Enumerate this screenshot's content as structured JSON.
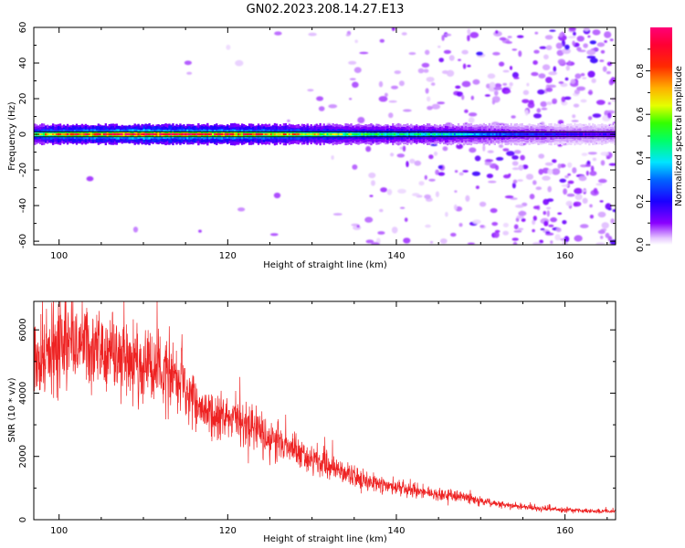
{
  "figure_title": "GN02.2023.208.14.27.E13",
  "colors": {
    "snr_line": "#ee2222",
    "band_core": "#ff1a3a",
    "background": "#ffffff"
  },
  "chart_data": [
    {
      "type": "heatmap",
      "name": "spectrogram",
      "xlabel": "Height of straight line (km)",
      "ylabel": "Frequency (Hz)",
      "xlim": [
        97,
        166
      ],
      "ylim": [
        -62,
        60
      ],
      "x_ticks": [
        100,
        120,
        140,
        160
      ],
      "y_ticks": [
        -60,
        -40,
        -20,
        0,
        20,
        40,
        60
      ],
      "colormap": "rainbow (violet to magenta)",
      "band": {
        "center_hz": 0,
        "halfwidth_hz": 2.5,
        "amplitude_profile": [
          {
            "x": 97,
            "amp": 0.6
          },
          {
            "x": 100,
            "amp": 0.85
          },
          {
            "x": 110,
            "amp": 1.0
          },
          {
            "x": 120,
            "amp": 0.92
          },
          {
            "x": 128,
            "amp": 0.75
          },
          {
            "x": 135,
            "amp": 0.55
          },
          {
            "x": 145,
            "amp": 0.45
          },
          {
            "x": 152,
            "amp": 0.3
          },
          {
            "x": 160,
            "amp": 0.2
          },
          {
            "x": 166,
            "amp": 0.18
          }
        ]
      },
      "noise_density_profile": [
        {
          "x": 97,
          "density": 0.0
        },
        {
          "x": 128,
          "density": 0.02
        },
        {
          "x": 135,
          "density": 0.15
        },
        {
          "x": 145,
          "density": 0.4
        },
        {
          "x": 150,
          "density": 0.65
        },
        {
          "x": 155,
          "density": 0.9
        },
        {
          "x": 166,
          "density": 1.0
        }
      ]
    },
    {
      "type": "colorbar",
      "name": "colorbar",
      "label": "Normalized spectral amplitude",
      "range": [
        0,
        1
      ],
      "ticks": [
        "0.0",
        "0.2",
        "0.4",
        "0.6",
        "0.8"
      ],
      "tick_values": [
        0.0,
        0.2,
        0.4,
        0.6,
        0.8
      ]
    },
    {
      "type": "line",
      "name": "snr",
      "xlabel": "Height of straight line (km)",
      "ylabel": "SNR (10 * v/v)",
      "xlim": [
        97,
        166
      ],
      "ylim": [
        0,
        6900
      ],
      "x_ticks": [
        100,
        120,
        140,
        160
      ],
      "y_ticks": [
        0,
        2000,
        4000,
        6000
      ],
      "trend": [
        {
          "x": 97,
          "y": 4700
        },
        {
          "x": 100,
          "y": 5500
        },
        {
          "x": 103,
          "y": 5600
        },
        {
          "x": 107,
          "y": 5100
        },
        {
          "x": 112,
          "y": 4700
        },
        {
          "x": 115,
          "y": 4300
        },
        {
          "x": 117,
          "y": 3500
        },
        {
          "x": 122,
          "y": 3100
        },
        {
          "x": 127,
          "y": 2300
        },
        {
          "x": 132,
          "y": 1650
        },
        {
          "x": 137,
          "y": 1200
        },
        {
          "x": 142,
          "y": 900
        },
        {
          "x": 147,
          "y": 750
        },
        {
          "x": 152,
          "y": 500
        },
        {
          "x": 157,
          "y": 350
        },
        {
          "x": 162,
          "y": 280
        },
        {
          "x": 166,
          "y": 260
        }
      ],
      "noise_amplitude_fraction": 0.22
    }
  ]
}
